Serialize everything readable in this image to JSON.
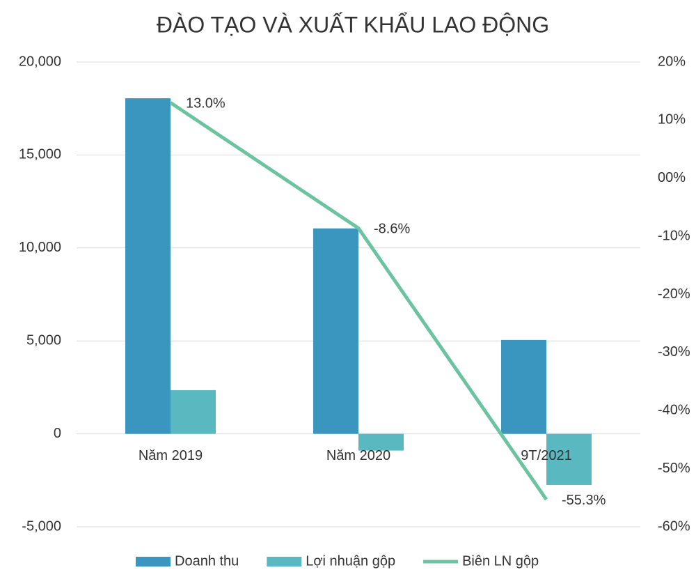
{
  "chart_data": {
    "type": "bar_line",
    "title": "ĐÀO TẠO VÀ XUẤT KHẨU LAO ĐỘNG",
    "categories": [
      "Năm 2019",
      "Năm 2020",
      "9T/2021"
    ],
    "series": [
      {
        "name": "Doanh thu",
        "type": "bar",
        "color": "#3a96bf",
        "values": [
          18050,
          11050,
          5050
        ]
      },
      {
        "name": "Lợi nhuận gộp",
        "type": "bar",
        "color": "#5ab8c0",
        "values": [
          2350,
          -900,
          -2750
        ]
      },
      {
        "name": "Biên LN gộp",
        "type": "line",
        "axis": "y2",
        "color": "#6cc3a0",
        "values": [
          13.0,
          -8.6,
          -55.3
        ],
        "value_labels": [
          "13.0%",
          "-8.6%",
          "-55.3%"
        ]
      }
    ],
    "ylim": [
      -5000,
      20000
    ],
    "yticks": [
      {
        "value": -5000,
        "label": "-5,000"
      },
      0,
      {
        "value": 5000,
        "label": "5,000"
      },
      {
        "value": 10000,
        "label": "10,000"
      },
      {
        "value": 15000,
        "label": "15,000"
      },
      {
        "value": 20000,
        "label": "20,000"
      }
    ],
    "y2lim": [
      -60,
      20
    ],
    "y2ticks": [
      {
        "value": -60,
        "label": "-60%"
      },
      {
        "value": -50,
        "label": "-50%"
      },
      {
        "value": -40,
        "label": "-40%"
      },
      {
        "value": -30,
        "label": "-30%"
      },
      {
        "value": -20,
        "label": "-20%"
      },
      {
        "value": -10,
        "label": "-10%"
      },
      {
        "value": 0,
        "label": "00%"
      },
      {
        "value": 10,
        "label": "10%"
      },
      {
        "value": 20,
        "label": "20%"
      }
    ],
    "grid": true,
    "legend": "bottom"
  }
}
